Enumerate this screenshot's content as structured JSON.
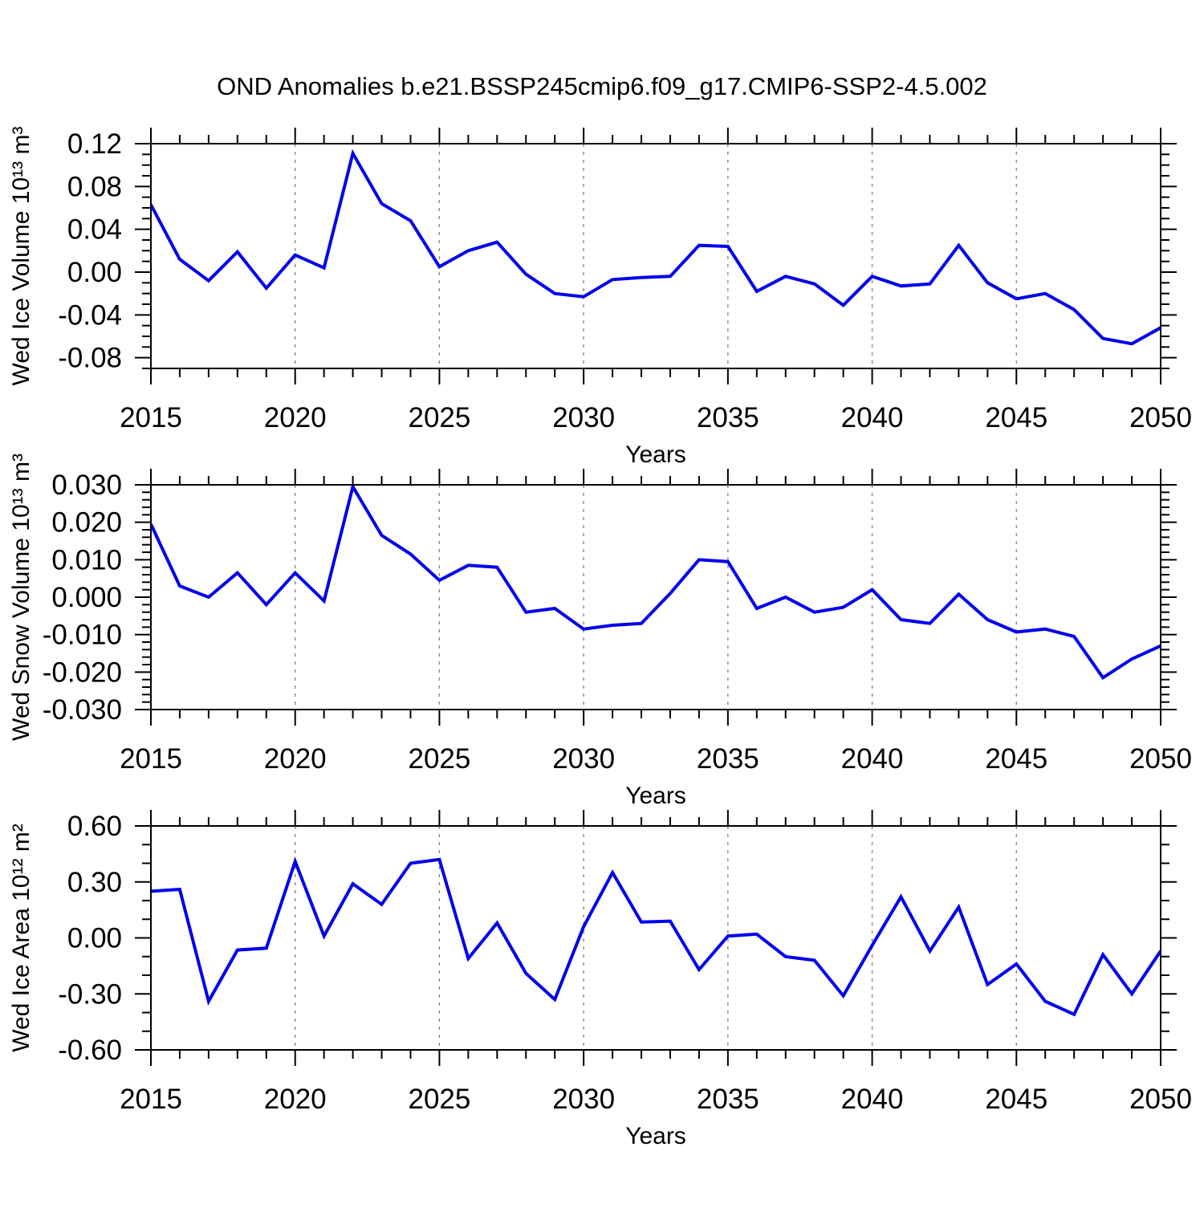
{
  "title": "OND Anomalies b.e21.BSSP245cmip6.f09_g17.CMIP6-SSP2-4.5.002",
  "style": {
    "line_color": "#0000EE",
    "grid_color": "#888888",
    "axis_color": "#000000",
    "background": "#ffffff"
  },
  "years": [
    2015,
    2016,
    2017,
    2018,
    2019,
    2020,
    2021,
    2022,
    2023,
    2024,
    2025,
    2026,
    2027,
    2028,
    2029,
    2030,
    2031,
    2032,
    2033,
    2034,
    2035,
    2036,
    2037,
    2038,
    2039,
    2040,
    2041,
    2042,
    2043,
    2044,
    2045,
    2046,
    2047,
    2048,
    2049,
    2050
  ],
  "xticks": [
    2015,
    2020,
    2025,
    2030,
    2035,
    2040,
    2045,
    2050
  ],
  "gridline_years": [
    2020,
    2025,
    2030,
    2035,
    2040,
    2045
  ],
  "chart_data": [
    {
      "type": "line",
      "ylabel": "Wed Ice Volume 10¹³ m³",
      "xlabel": "Years",
      "ylim": [
        -0.09,
        0.12
      ],
      "ymajor_start": -0.08,
      "ymajor": 0.04,
      "yminor": 0.01,
      "ydecimals": 2,
      "xlim": [
        2015,
        2050
      ],
      "grid": "vertical-dashed",
      "legend": "none",
      "values": [
        0.063,
        0.012,
        -0.008,
        0.019,
        -0.015,
        0.016,
        0.004,
        0.111,
        0.064,
        0.048,
        0.005,
        0.02,
        0.028,
        -0.002,
        -0.02,
        -0.023,
        -0.007,
        -0.005,
        -0.004,
        0.025,
        0.024,
        -0.018,
        -0.004,
        -0.011,
        -0.031,
        -0.004,
        -0.013,
        -0.011,
        0.025,
        -0.01,
        -0.025,
        -0.02,
        -0.035,
        -0.062,
        -0.067,
        -0.052
      ]
    },
    {
      "type": "line",
      "ylabel": "Wed Snow Volume 10¹³ m³",
      "xlabel": "Years",
      "ylim": [
        -0.03,
        0.03
      ],
      "ymajor_start": -0.03,
      "ymajor": 0.01,
      "yminor": 0.002,
      "ydecimals": 3,
      "xlim": [
        2015,
        2050
      ],
      "grid": "vertical-dashed",
      "legend": "none",
      "values": [
        0.0195,
        0.003,
        0.0,
        0.0065,
        -0.002,
        0.0065,
        -0.001,
        0.0295,
        0.0165,
        0.0115,
        0.0045,
        0.0085,
        0.008,
        -0.004,
        -0.003,
        -0.0085,
        -0.0075,
        -0.007,
        0.001,
        0.01,
        0.0095,
        -0.003,
        0.0,
        -0.004,
        -0.0027,
        0.002,
        -0.006,
        -0.007,
        0.0008,
        -0.006,
        -0.0093,
        -0.0085,
        -0.0105,
        -0.0215,
        -0.0165,
        -0.013
      ]
    },
    {
      "type": "line",
      "ylabel": "Wed Ice Area 10¹² m²",
      "xlabel": "Years",
      "ylim": [
        -0.6,
        0.6
      ],
      "ymajor_start": -0.6,
      "ymajor": 0.3,
      "yminor": 0.1,
      "ydecimals": 2,
      "xlim": [
        2015,
        2050
      ],
      "grid": "vertical-dashed",
      "legend": "none",
      "values": [
        0.25,
        0.26,
        -0.34,
        -0.065,
        -0.055,
        0.41,
        0.01,
        0.29,
        0.18,
        0.4,
        0.42,
        -0.11,
        0.08,
        -0.19,
        -0.33,
        0.06,
        0.35,
        0.085,
        0.09,
        -0.17,
        0.01,
        0.02,
        -0.1,
        -0.12,
        -0.31,
        -0.04,
        0.22,
        -0.07,
        0.165,
        -0.25,
        -0.14,
        -0.34,
        -0.41,
        -0.09,
        -0.3,
        -0.07
      ]
    }
  ]
}
